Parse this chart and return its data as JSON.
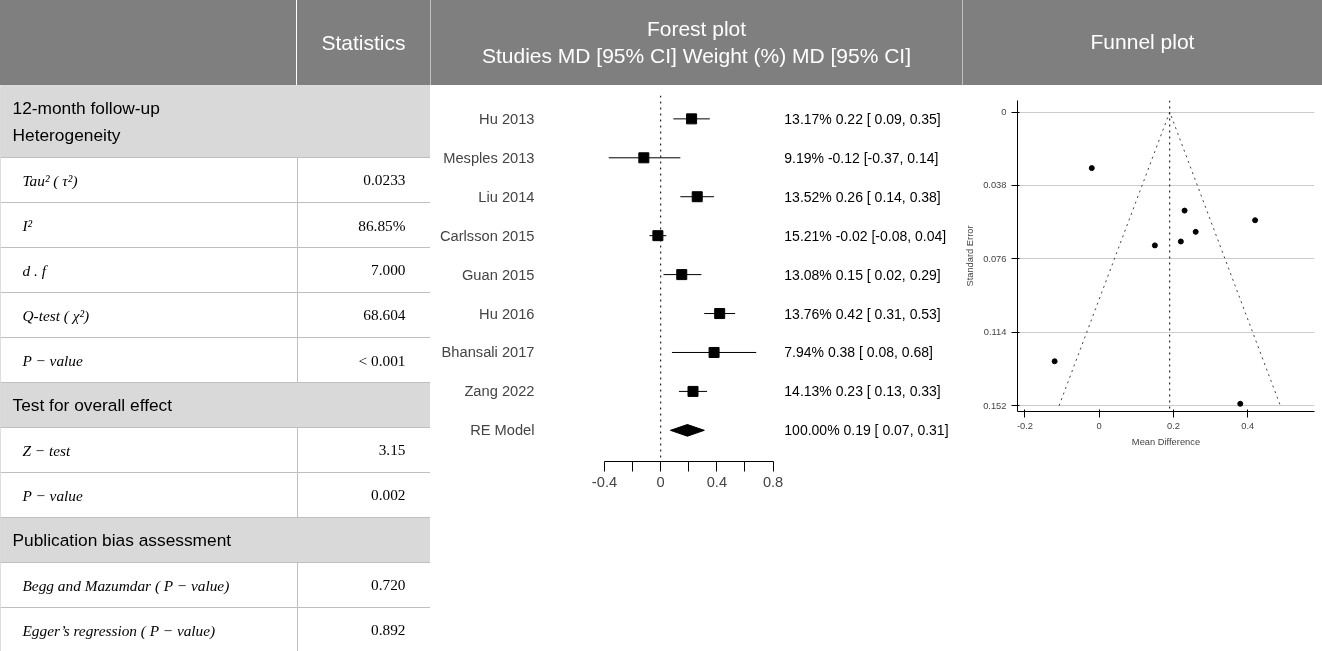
{
  "chart_data": [
    {
      "type": "other",
      "title": "Statistics",
      "categories": [
        "12-month follow-up\nHeterogeneity",
        "Tau² ( τ²)",
        "I²",
        "d . f",
        "Q-test ( χ²)",
        "P − value",
        "Test for overall effect",
        "Z − test",
        "P − value",
        "Publication bias assessment",
        "Begg and Mazumdar ( P − value)",
        "Egger’s regression ( P − value)"
      ],
      "value_labels": [
        null,
        "0.0233",
        "86.85%",
        "7.000",
        "68.604",
        "< 0.001",
        null,
        "3.15",
        "0.002",
        null,
        "0.720",
        "0.892"
      ]
    },
    {
      "type": "scatter",
      "orientation": "horizontal",
      "title": "Forest plot",
      "subtitle": "Studies MD [95% CI] Weight (%) MD [95% CI]",
      "categories": [
        "Hu 2013",
        "Mesples 2013",
        "Liu 2014",
        "Carlsson 2015",
        "Guan 2015",
        "Hu 2016",
        "Bhansali 2017",
        "Zang 2022",
        "RE Model"
      ],
      "series": [
        {
          "color": "#000000",
          "marker": "square",
          "values": [
            0.22,
            -0.12,
            0.26,
            -0.02,
            0.15,
            0.42,
            0.38,
            0.23,
            null
          ],
          "errors": [
            [
              0.09,
              0.35
            ],
            [
              -0.37,
              0.14
            ],
            [
              0.14,
              0.38
            ],
            [
              -0.08,
              0.04
            ],
            [
              0.02,
              0.29
            ],
            [
              0.31,
              0.53
            ],
            [
              0.08,
              0.68
            ],
            [
              0.13,
              0.33
            ],
            null
          ]
        },
        {
          "color": "#000000",
          "marker": "diamond",
          "values": [
            null,
            null,
            null,
            null,
            null,
            null,
            null,
            null,
            0.19
          ],
          "errors": [
            null,
            null,
            null,
            null,
            null,
            null,
            null,
            null,
            [
              0.07,
              0.31
            ]
          ]
        }
      ],
      "value_labels": [
        "13.17%   0.22 [ 0.09, 0.35]",
        "9.19%   -0.12 [-0.37, 0.14]",
        "13.52%   0.26 [ 0.14, 0.38]",
        "15.21%   -0.02 [-0.08, 0.04]",
        "13.08%   0.15 [ 0.02, 0.29]",
        "13.76%   0.42 [ 0.31, 0.53]",
        "7.94%   0.38 [ 0.08, 0.68]",
        "14.13%   0.23 [ 0.13, 0.33]",
        "100.00%   0.19 [ 0.07, 0.31]"
      ],
      "xlim": [
        -0.4,
        0.8
      ],
      "xticks": [
        -0.4,
        {
          "value": -0.2,
          "label": null
        },
        0,
        {
          "value": 0.2,
          "label": null
        },
        0.4,
        {
          "value": 0.6,
          "label": null
        },
        0.8
      ],
      "ref_lines": [
        {
          "axis": "x",
          "value": 0,
          "line_style": "dotted"
        }
      ]
    },
    {
      "type": "scatter",
      "title": "Funnel plot",
      "xlabel": "Mean Difference",
      "ylabel": "Standard Error",
      "series": [
        {
          "color": "#000000",
          "marker": "circle",
          "x": [
            0.22,
            -0.12,
            0.26,
            -0.02,
            0.15,
            0.42,
            0.38,
            0.23
          ],
          "values": [
            0.067,
            0.129,
            0.062,
            0.029,
            0.069,
            0.056,
            0.151,
            0.051
          ]
        },
        {
          "type": "line",
          "color": "#404040",
          "line_style": "dotted",
          "x": [
            -0.108,
            0.19,
            0.488
          ],
          "values": [
            0.152,
            0,
            0.152
          ]
        }
      ],
      "xlim": [
        -0.22,
        0.58
      ],
      "ylim": [
        0.155,
        -0.006
      ],
      "xticks": [
        -0.2,
        0,
        0.2,
        0.4
      ],
      "yticks": [
        0,
        0.038,
        0.076,
        0.114,
        0.152
      ],
      "ref_lines": [
        {
          "axis": "x",
          "value": 0.19,
          "line_style": "dotted"
        }
      ],
      "grid": "y"
    }
  ]
}
